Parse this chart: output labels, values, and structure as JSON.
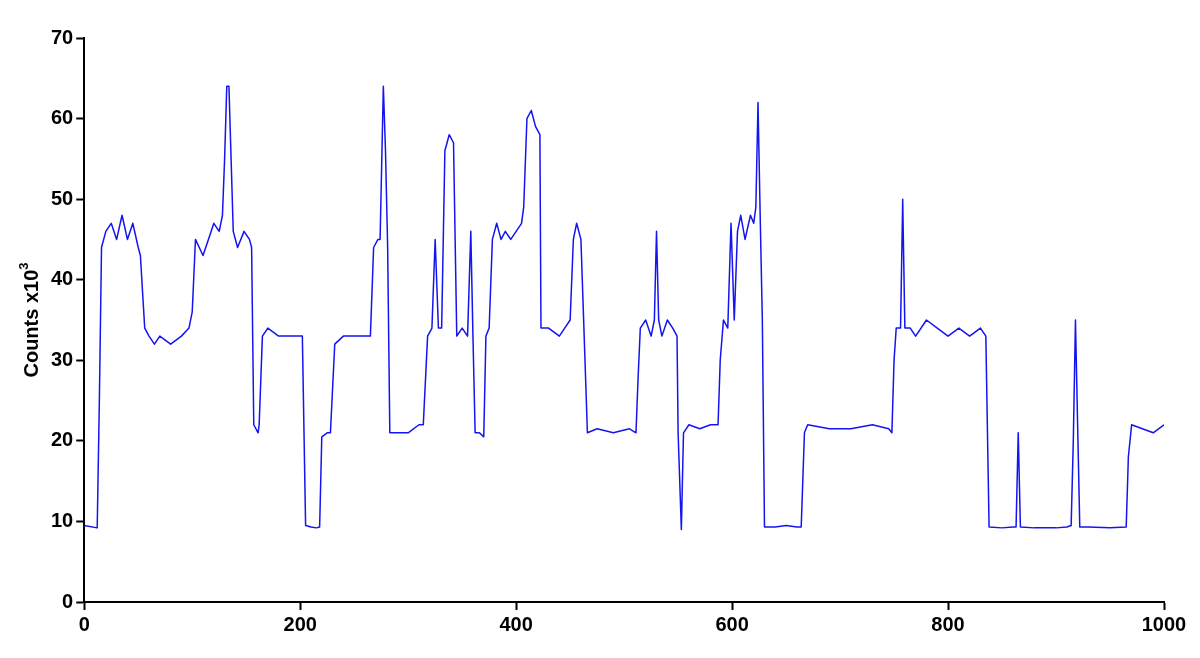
{
  "chart_data": {
    "type": "line",
    "ylabel": "Counts x10$^{3}$",
    "xlim": [
      0,
      1000
    ],
    "xticks": [
      0,
      200,
      400,
      600,
      800,
      1000
    ],
    "ylim": [
      0,
      70
    ],
    "yticks": [
      0,
      10,
      20,
      30,
      40,
      50,
      60,
      70
    ],
    "grid": false,
    "legend": false,
    "series": [
      {
        "color": "#1414f0",
        "x": [
          0,
          12,
          14,
          16,
          20,
          25,
          30,
          35,
          40,
          45,
          50,
          52,
          56,
          60,
          65,
          70,
          80,
          90,
          97,
          100,
          103,
          110,
          115,
          120,
          125,
          128,
          130,
          132,
          134,
          136,
          138,
          142,
          148,
          153,
          155,
          157,
          161,
          162,
          165,
          170,
          180,
          190,
          200,
          202,
          205,
          210,
          215,
          218,
          220,
          225,
          228,
          232,
          240,
          250,
          260,
          265,
          268,
          272,
          274,
          277,
          279,
          281,
          283,
          290,
          300,
          310,
          314,
          318,
          322,
          325,
          328,
          331,
          334,
          338,
          342,
          345,
          350,
          355,
          358,
          360,
          362,
          366,
          370,
          372,
          375,
          378,
          382,
          386,
          390,
          395,
          400,
          405,
          407,
          410,
          414,
          418,
          422,
          423,
          430,
          440,
          445,
          450,
          453,
          456,
          460,
          463,
          466,
          475,
          490,
          505,
          511,
          513,
          515,
          520,
          525,
          528,
          530,
          532,
          535,
          540,
          545,
          549,
          550,
          553,
          555,
          560,
          570,
          580,
          587,
          589,
          592,
          596,
          599,
          602,
          605,
          608,
          612,
          617,
          620,
          622,
          624,
          626,
          628,
          630,
          640,
          650,
          660,
          664,
          667,
          670,
          690,
          710,
          730,
          745,
          748,
          750,
          752,
          756,
          758,
          760,
          765,
          770,
          780,
          790,
          800,
          810,
          820,
          830,
          835,
          838,
          850,
          860,
          863,
          865,
          867,
          880,
          900,
          910,
          914,
          916,
          918,
          920,
          922,
          930,
          950,
          965,
          967,
          970,
          980,
          990,
          1000
        ],
        "values": [
          9.5,
          9.2,
          25,
          44,
          46,
          47,
          45,
          48,
          45,
          47,
          44,
          43,
          34,
          33,
          32,
          33,
          32,
          33,
          34,
          36,
          45,
          43,
          45,
          47,
          46,
          48,
          55,
          64,
          64,
          55,
          46,
          44,
          46,
          45,
          44,
          22,
          21,
          22,
          33,
          34,
          33,
          33,
          33,
          33,
          9.5,
          9.3,
          9.2,
          9.3,
          20.5,
          21,
          21,
          32,
          33,
          33,
          33,
          33,
          44,
          45,
          45,
          64,
          56,
          44,
          21,
          21,
          21,
          22,
          22,
          33,
          34,
          45,
          34,
          34,
          56,
          58,
          57,
          33,
          34,
          33,
          46,
          33,
          21,
          21,
          20.5,
          33,
          34,
          45,
          47,
          45,
          46,
          45,
          46,
          47,
          49,
          60,
          61,
          59,
          58,
          34,
          34,
          33,
          34,
          35,
          45,
          47,
          45,
          33,
          21,
          21.5,
          21,
          21.5,
          21,
          28,
          34,
          35,
          33,
          35,
          46,
          35,
          33,
          35,
          34,
          33,
          21,
          9,
          21,
          22,
          21.5,
          22,
          22,
          30,
          35,
          34,
          47,
          35,
          46,
          48,
          45,
          48,
          47,
          49,
          62,
          48,
          35,
          9.3,
          9.3,
          9.5,
          9.3,
          9.3,
          21,
          22,
          21.5,
          21.5,
          22,
          21.5,
          21,
          30,
          34,
          34,
          50,
          34,
          34,
          33,
          35,
          34,
          33,
          34,
          33,
          34,
          33,
          9.3,
          9.2,
          9.3,
          9.3,
          21,
          9.3,
          9.2,
          9.2,
          9.3,
          9.5,
          20,
          35,
          22,
          9.3,
          9.3,
          9.2,
          9.3,
          18,
          22,
          21.5,
          21,
          22
        ]
      }
    ]
  }
}
